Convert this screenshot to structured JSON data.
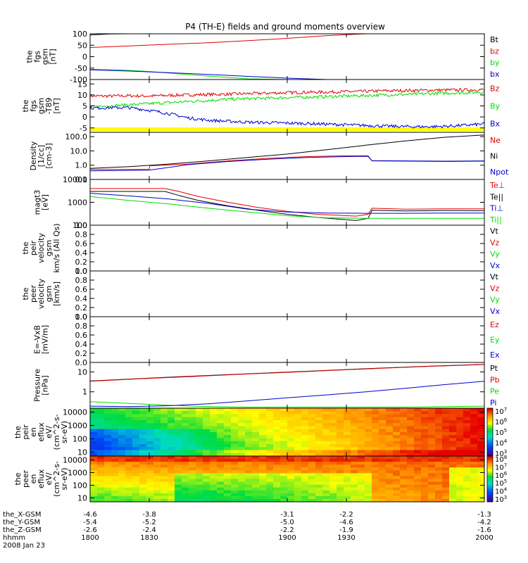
{
  "title": "P4 (TH-E) fields and ground moments overview",
  "colors": {
    "black": "#000000",
    "red": "#e00000",
    "green": "#00dd00",
    "blue": "#0000cc",
    "yellow": "#ffff00"
  },
  "chart_data": [
    {
      "type": "line",
      "ylabel": [
        "the",
        "fgs",
        "gsm",
        "[nT]"
      ],
      "ylim": [
        -100,
        100
      ],
      "log": false,
      "yticks": [
        {
          "v": 100,
          "label": "100"
        },
        {
          "v": 50,
          "label": "50"
        },
        {
          "v": 0,
          "label": "0"
        },
        {
          "v": -50,
          "label": "-50"
        },
        {
          "v": -100,
          "label": "-100"
        }
      ],
      "legend": [
        {
          "label": "Bt",
          "color": "#000000"
        },
        {
          "label": "bz",
          "color": "#e00000"
        },
        {
          "label": "by",
          "color": "#00dd00"
        },
        {
          "label": "bx",
          "color": "#0000cc"
        }
      ],
      "series": [
        {
          "color": "#000000",
          "x": [
            1800,
            1810,
            1820,
            1830,
            1840
          ],
          "y": [
            95,
            99,
            103,
            106,
            110
          ]
        },
        {
          "color": "#e00000",
          "x": [
            1800,
            1820,
            1840,
            1860,
            1880,
            1900,
            1920,
            1940
          ],
          "y": [
            40,
            47,
            54,
            61,
            70,
            80,
            92,
            106
          ]
        },
        {
          "color": "#00dd00",
          "x": [
            1800,
            1815,
            1830,
            1845,
            1860,
            1880,
            1900
          ],
          "y": [
            -55,
            -58,
            -65,
            -75,
            -85,
            -97,
            -108
          ]
        },
        {
          "color": "#0000cc",
          "x": [
            1800,
            1820,
            1840,
            1860,
            1880,
            1900,
            1920,
            1940
          ],
          "y": [
            -58,
            -63,
            -70,
            -78,
            -86,
            -94,
            -102,
            -110
          ]
        }
      ]
    },
    {
      "type": "line",
      "ylabel": [
        "the",
        "fgs",
        "gsm",
        "-T89",
        "[nT]"
      ],
      "ylim": [
        -7,
        17
      ],
      "log": false,
      "yticks": [
        {
          "v": 15,
          "label": "15"
        },
        {
          "v": 10,
          "label": "10"
        },
        {
          "v": 5,
          "label": "5"
        },
        {
          "v": 0,
          "label": "0"
        },
        {
          "v": -5,
          "label": "-5"
        }
      ],
      "legend": [
        {
          "label": "Bz",
          "color": "#e00000"
        },
        {
          "label": "By",
          "color": "#00dd00"
        },
        {
          "label": "Bx",
          "color": "#0000cc"
        }
      ],
      "series": [
        {
          "color": "#e00000",
          "noisy": true,
          "x": [
            1800,
            1810,
            1820,
            1830,
            1840,
            1850,
            1860,
            1870,
            1880,
            1890,
            1900,
            1910,
            1920,
            1930,
            1940,
            1950,
            1960,
            1970,
            1980,
            1990,
            2000
          ],
          "y": [
            9.5,
            9.5,
            9.6,
            9.5,
            9.8,
            10,
            10.2,
            10.3,
            10.6,
            10.8,
            11,
            11.2,
            11.3,
            11.5,
            11.6,
            11.9,
            12,
            12.1,
            12.2,
            12.3,
            12.4
          ]
        },
        {
          "color": "#00dd00",
          "noisy": true,
          "x": [
            1800,
            1810,
            1820,
            1830,
            1840,
            1850,
            1860,
            1870,
            1880,
            1890,
            1900,
            1910,
            1920,
            1930,
            1940,
            1950,
            1960,
            1970,
            1980,
            1990,
            2000
          ],
          "y": [
            4.5,
            5,
            5.5,
            6,
            6.5,
            7,
            7.5,
            8,
            8.3,
            8.5,
            8.8,
            9,
            9.2,
            9.5,
            9.7,
            10,
            10.2,
            10.5,
            10.8,
            11,
            11.3
          ]
        },
        {
          "color": "#0000cc",
          "noisy": true,
          "x": [
            1800,
            1810,
            1820,
            1830,
            1840,
            1850,
            1860,
            1870,
            1880,
            1890,
            1900,
            1910,
            1920,
            1930,
            1940,
            1950,
            1960,
            1970,
            1980,
            1990,
            2000
          ],
          "y": [
            4,
            4.2,
            4.2,
            3,
            1.5,
            -0.5,
            -1.5,
            -2,
            -2.4,
            -2.6,
            -2.8,
            -3,
            -3.3,
            -3.6,
            -3.9,
            -4.2,
            -4.4,
            -4.5,
            -4.3,
            -3.8,
            -3.2
          ]
        }
      ]
    },
    {
      "type": "line",
      "ylabel": [
        "Density",
        "[1/cc]",
        "[cm-3]"
      ],
      "ylim": [
        0.1,
        200
      ],
      "log": true,
      "yticks": [
        {
          "v": 100,
          "label": "100.0"
        },
        {
          "v": 10,
          "label": "10.0"
        },
        {
          "v": 1,
          "label": "1.0"
        },
        {
          "v": 0.1,
          "label": "0.1"
        }
      ],
      "legend": [
        {
          "label": "Ne",
          "color": "#e00000"
        },
        {
          "label": "Ni",
          "color": "#000000"
        },
        {
          "label": "Npot",
          "color": "#0000cc"
        }
      ],
      "series": [
        {
          "color": "#000000",
          "x": [
            1800,
            1820,
            1840,
            1860,
            1880,
            1900,
            1920,
            1940,
            1960,
            1980,
            2000
          ],
          "y": [
            0.6,
            0.8,
            1.2,
            2.0,
            3.5,
            6,
            12,
            25,
            50,
            90,
            130
          ]
        },
        {
          "color": "#e00000",
          "x": [
            1800,
            1830,
            1830.2,
            1850,
            1870,
            1890,
            1910,
            1930,
            1941,
            1943,
            1960,
            1980,
            2000
          ],
          "y": [
            0.5,
            0.5,
            0.9,
            1.2,
            2.0,
            3.0,
            4.0,
            4.5,
            4.5,
            2.0,
            1.9,
            1.8,
            1.9
          ]
        },
        {
          "color": "#0000cc",
          "x": [
            1800,
            1830,
            1850,
            1870,
            1890,
            1910,
            1930,
            1941,
            1943,
            1960,
            1980,
            2000
          ],
          "y": [
            0.4,
            0.45,
            1.1,
            1.8,
            2.6,
            3.5,
            4.0,
            4.2,
            2.1,
            2.0,
            1.9,
            2.0
          ]
        }
      ]
    },
    {
      "type": "line",
      "ylabel": [
        "magt3",
        "[eV]"
      ],
      "ylim": [
        100,
        10000
      ],
      "log": true,
      "yticks": [
        {
          "v": 10000,
          "label": "10000"
        },
        {
          "v": 1000,
          "label": "1000"
        },
        {
          "v": 100,
          "label": "100"
        }
      ],
      "legend": [
        {
          "label": "Te⊥",
          "color": "#e00000"
        },
        {
          "label": "Te||",
          "color": "#000000"
        },
        {
          "label": "Ti⊥",
          "color": "#0000cc"
        },
        {
          "label": "Ti||",
          "color": "#00dd00"
        }
      ],
      "series": [
        {
          "color": "#e00000",
          "x": [
            1800,
            1830,
            1838,
            1845,
            1855,
            1870,
            1885,
            1900,
            1915,
            1935,
            1941,
            1943,
            1960,
            1980,
            2000
          ],
          "y": [
            4000,
            4000,
            4000,
            3000,
            1800,
            1000,
            600,
            400,
            300,
            250,
            300,
            550,
            500,
            520,
            520
          ]
        },
        {
          "color": "#000000",
          "x": [
            1800,
            1830,
            1838,
            1845,
            1855,
            1870,
            1885,
            1900,
            1915,
            1935,
            1941,
            1943,
            1960,
            1980,
            2000
          ],
          "y": [
            3000,
            3000,
            3000,
            2000,
            1200,
            700,
            450,
            300,
            220,
            160,
            200,
            450,
            420,
            440,
            430
          ]
        },
        {
          "color": "#0000cc",
          "x": [
            1800,
            1820,
            1840,
            1860,
            1880,
            1900,
            1920,
            1940,
            1960,
            1980,
            2000
          ],
          "y": [
            2500,
            1900,
            1400,
            900,
            500,
            380,
            340,
            330,
            330,
            340,
            340
          ]
        },
        {
          "color": "#00dd00",
          "x": [
            1800,
            1820,
            1840,
            1860,
            1880,
            1900,
            1920,
            1940,
            1960,
            1980,
            2000
          ],
          "y": [
            1800,
            1200,
            850,
            550,
            380,
            260,
            210,
            200,
            200,
            200,
            200
          ]
        }
      ]
    },
    {
      "type": "line",
      "ylabel": [
        "the",
        "peir",
        "velocity",
        "gsm",
        "km/s (All Qs)"
      ],
      "ylim": [
        0,
        1
      ],
      "log": false,
      "yticks": [
        {
          "v": 1,
          "label": "1.0"
        },
        {
          "v": 0.8,
          "label": "0.8"
        },
        {
          "v": 0.6,
          "label": "0.6"
        },
        {
          "v": 0.4,
          "label": "0.4"
        },
        {
          "v": 0.2,
          "label": "0.2"
        },
        {
          "v": 0,
          "label": "0.0"
        }
      ],
      "legend": [
        {
          "label": "Vt",
          "color": "#000000"
        },
        {
          "label": "Vz",
          "color": "#e00000"
        },
        {
          "label": "Vy",
          "color": "#00dd00"
        },
        {
          "label": "Vx",
          "color": "#0000cc"
        }
      ],
      "series": []
    },
    {
      "type": "line",
      "ylabel": [
        "the",
        "peer",
        "velocity",
        "gsm",
        "[km/s]"
      ],
      "ylim": [
        0,
        1
      ],
      "log": false,
      "yticks": [
        {
          "v": 1,
          "label": "1.0"
        },
        {
          "v": 0.8,
          "label": "0.8"
        },
        {
          "v": 0.6,
          "label": "0.6"
        },
        {
          "v": 0.4,
          "label": "0.4"
        },
        {
          "v": 0.2,
          "label": "0.2"
        },
        {
          "v": 0,
          "label": "0.0"
        }
      ],
      "legend": [
        {
          "label": "Vt",
          "color": "#000000"
        },
        {
          "label": "Vz",
          "color": "#e00000"
        },
        {
          "label": "Vy",
          "color": "#00dd00"
        },
        {
          "label": "Vx",
          "color": "#0000cc"
        }
      ],
      "series": []
    },
    {
      "type": "line",
      "ylabel": [
        "E=-VxB",
        "[mV/m]"
      ],
      "ylim": [
        0,
        1
      ],
      "log": false,
      "yticks": [
        {
          "v": 1,
          "label": "1.0"
        },
        {
          "v": 0.8,
          "label": "0.8"
        },
        {
          "v": 0.6,
          "label": "0.6"
        },
        {
          "v": 0.4,
          "label": "0.4"
        },
        {
          "v": 0.2,
          "label": "0.2"
        },
        {
          "v": 0,
          "label": "0.0"
        }
      ],
      "legend": [
        {
          "label": "Ez",
          "color": "#e00000"
        },
        {
          "label": "Ey",
          "color": "#00dd00"
        },
        {
          "label": "Ex",
          "color": "#0000cc"
        }
      ],
      "series": []
    },
    {
      "type": "line",
      "ylabel": [
        "Pressure",
        "[nPa]"
      ],
      "ylim": [
        0.15,
        30
      ],
      "log": true,
      "yticks": [
        {
          "v": 10,
          "label": "10"
        },
        {
          "v": 1,
          "label": "1"
        }
      ],
      "legend": [
        {
          "label": "Pt",
          "color": "#000000"
        },
        {
          "label": "Pb",
          "color": "#e00000"
        },
        {
          "label": "Pe",
          "color": "#00dd00"
        },
        {
          "label": "Pi",
          "color": "#0000cc"
        }
      ],
      "series": [
        {
          "color": "#000000",
          "x": [
            1800,
            1825,
            1850,
            1875,
            1900,
            1925,
            1950,
            1975,
            2000
          ],
          "y": [
            3.5,
            4.6,
            6.0,
            7.7,
            9.8,
            12.5,
            16,
            20,
            24
          ]
        },
        {
          "color": "#e00000",
          "x": [
            1800,
            1825,
            1850,
            1875,
            1900,
            1925,
            1950,
            1975,
            2000
          ],
          "y": [
            3.4,
            4.5,
            5.8,
            7.5,
            9.5,
            12.2,
            15.6,
            19.5,
            23.5
          ]
        },
        {
          "color": "#00dd00",
          "x": [
            1800,
            1820,
            1840,
            1860,
            1880,
            1900,
            1920,
            1940,
            1960,
            1980,
            2000
          ],
          "y": [
            0.32,
            0.26,
            0.21,
            0.18,
            0.17,
            0.17,
            0.17,
            0.17,
            0.17,
            0.18,
            0.19
          ]
        },
        {
          "color": "#0000cc",
          "x": [
            1800,
            1820,
            1840,
            1860,
            1880,
            1900,
            1920,
            1940,
            1960,
            1980,
            2000
          ],
          "y": [
            0.19,
            0.18,
            0.2,
            0.25,
            0.35,
            0.5,
            0.7,
            1.0,
            1.5,
            2.3,
            3.4
          ]
        }
      ]
    },
    {
      "type": "heatmap",
      "ylabel": [
        "the",
        "peir",
        "en",
        "eflux",
        "eV/",
        "(cm^2-s-",
        "sr-eV)"
      ],
      "ylim": [
        5,
        20000
      ],
      "log": true,
      "yticks": [
        {
          "v": 10000,
          "label": "10000"
        },
        {
          "v": 1000,
          "label": "1000"
        },
        {
          "v": 100,
          "label": "100"
        },
        {
          "v": 10,
          "label": "10"
        }
      ],
      "colorbar": {
        "min_exp": 3,
        "max_exp": 7,
        "labels": [
          "10",
          "10",
          "10",
          "10",
          "10"
        ],
        "exps": [
          "3",
          "4",
          "5",
          "6",
          "7"
        ]
      }
    },
    {
      "type": "heatmap",
      "ylabel": [
        "the",
        "peer",
        "en",
        "eflux",
        "eV/",
        "(cm^2-s-",
        "sr-eV)"
      ],
      "ylim": [
        5,
        20000
      ],
      "log": true,
      "yticks": [
        {
          "v": 10000,
          "label": "10000"
        },
        {
          "v": 1000,
          "label": "1000"
        },
        {
          "v": 100,
          "label": "100"
        },
        {
          "v": 10,
          "label": "10"
        }
      ],
      "colorbar": {
        "min_exp": 3,
        "max_exp": 8,
        "labels": [
          "10",
          "10",
          "10",
          "10",
          "10",
          "10"
        ],
        "exps": [
          "3",
          "4",
          "5",
          "6",
          "7",
          "8"
        ]
      }
    }
  ],
  "time_axis": {
    "xlim": [
      1800,
      2000
    ],
    "ticks": [
      {
        "x": 1800,
        "labels": [
          "-4.6",
          "-5.4",
          "-2.6",
          "1800"
        ]
      },
      {
        "x": 1830,
        "labels": [
          "-3.8",
          "-5.2",
          "-2.4",
          "1830"
        ]
      },
      {
        "x": 1900,
        "labels": [
          "-3.1",
          "-5.0",
          "-2.2",
          "1900"
        ]
      },
      {
        "x": 1930,
        "labels": [
          "-2.2",
          "-4.6",
          "-1.9",
          "1930"
        ]
      },
      {
        "x": 2000,
        "labels": [
          "-1.3",
          "-4.2",
          "-1.6",
          "2000"
        ]
      }
    ],
    "row_labels": [
      "the_X-GSM",
      "the_Y-GSM",
      "the_Z-GSM",
      "hhmm"
    ],
    "date": "2008 Jan 23"
  }
}
